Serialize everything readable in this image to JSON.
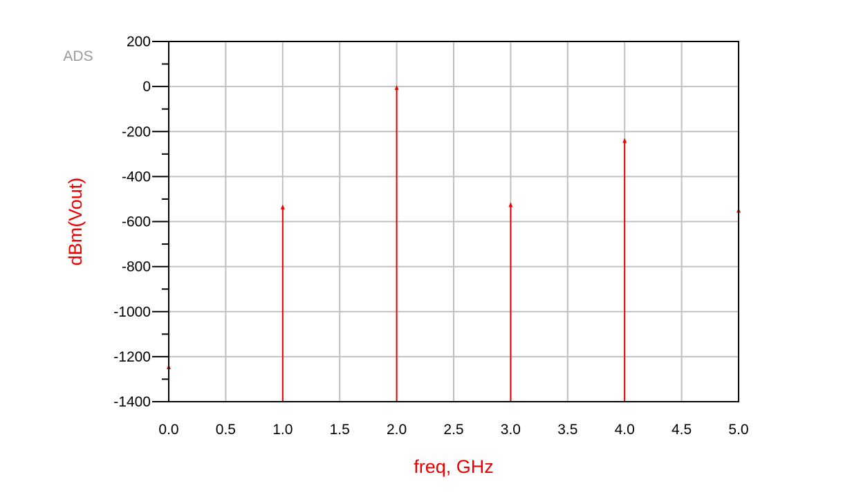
{
  "logo_text": "ADS",
  "chart_data": {
    "type": "stem",
    "xlabel": "freq, GHz",
    "ylabel": "dBm(Vout)",
    "xlim": [
      0,
      5
    ],
    "ylim": [
      -1400,
      200
    ],
    "xticks": [
      "0.0",
      "0.5",
      "1.0",
      "1.5",
      "2.0",
      "2.5",
      "3.0",
      "3.5",
      "4.0",
      "4.5",
      "5.0"
    ],
    "yticks": [
      "200",
      "0",
      "-200",
      "-400",
      "-600",
      "-800",
      "-1000",
      "-1200",
      "-1400"
    ],
    "grid": true,
    "series": [
      {
        "x": [
          0,
          1,
          2,
          3,
          4,
          5
        ],
        "y": [
          -1240,
          -530,
          0,
          -520,
          -235,
          -545
        ],
        "color": "#ee0000"
      }
    ]
  }
}
